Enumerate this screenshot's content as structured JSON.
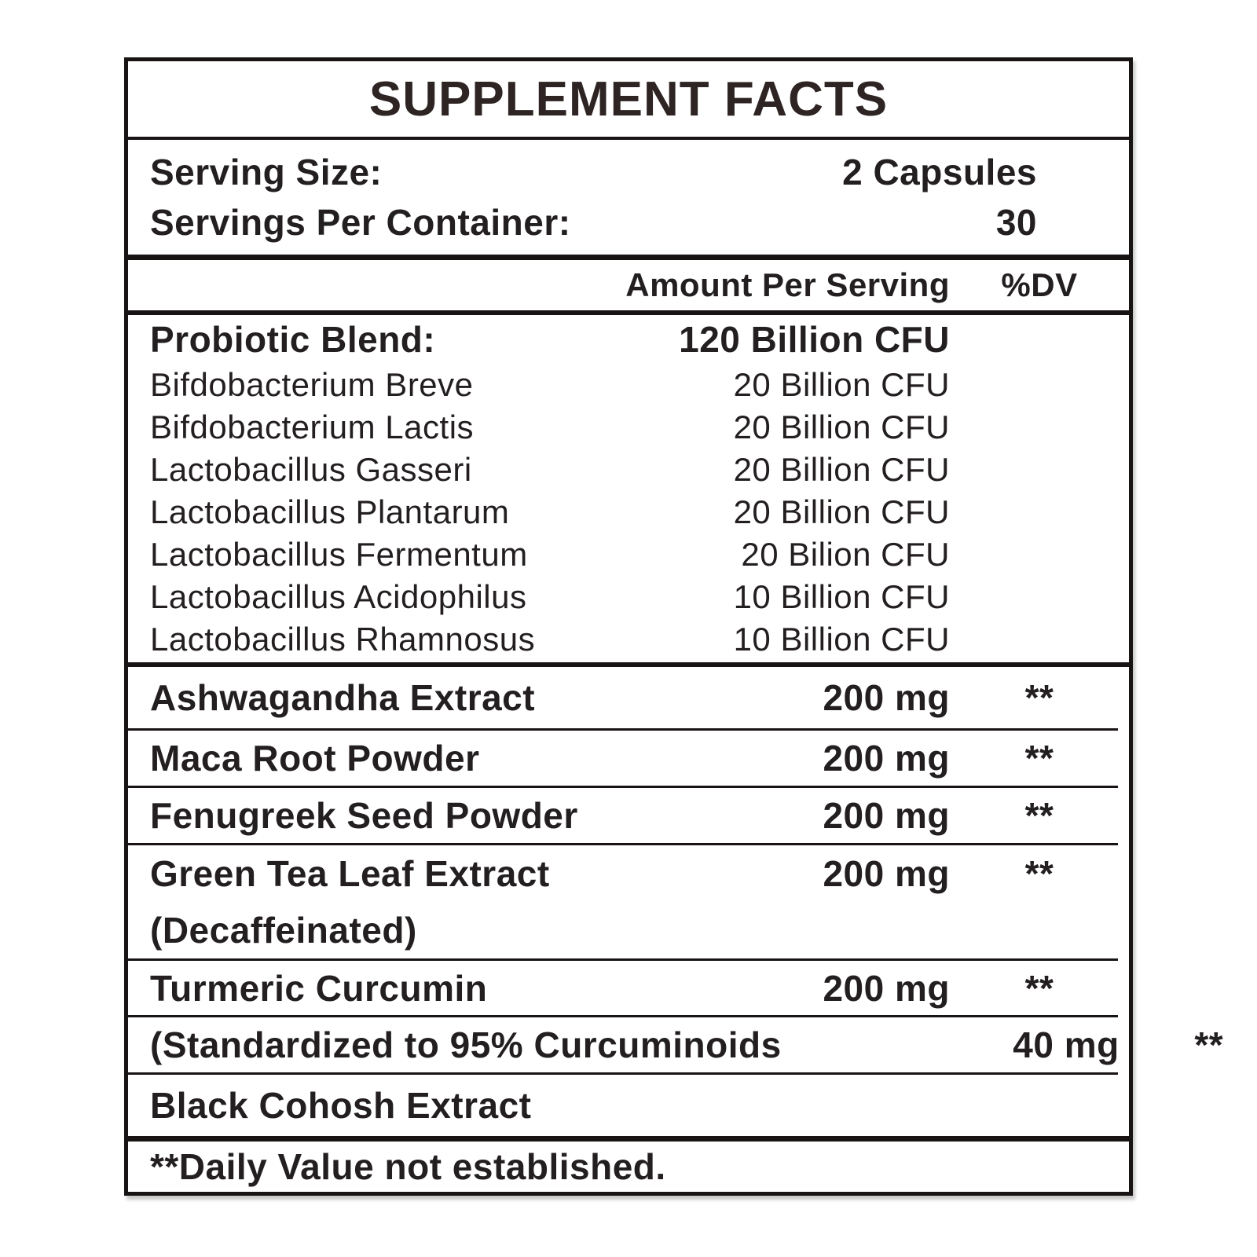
{
  "title": "SUPPLEMENT FACTS",
  "serving": {
    "size_label": "Serving Size:",
    "size_value": "2 Capsules",
    "container_label": "Servings Per Container:",
    "container_value": "30"
  },
  "header": {
    "amount": "Amount Per Serving",
    "dv": "%DV"
  },
  "probiotic": {
    "name": "Probiotic Blend:",
    "amount": "120 Billion CFU",
    "strains": [
      {
        "name": "Bifdobacterium Breve",
        "amount": "20 Billion CFU"
      },
      {
        "name": "Bifdobacterium Lactis",
        "amount": "20 Billion CFU"
      },
      {
        "name": "Lactobacillus Gasseri",
        "amount": "20 Billion CFU"
      },
      {
        "name": "Lactobacillus Plantarum",
        "amount": "20 Billion CFU"
      },
      {
        "name": "Lactobacillus Fermentum",
        "amount": "20 Bilion CFU"
      },
      {
        "name": "Lactobacillus Acidophilus",
        "amount": "10 Billion CFU"
      },
      {
        "name": "Lactobacillus Rhamnosus",
        "amount": "10 Billion CFU"
      }
    ]
  },
  "ingredients": [
    {
      "name": "Ashwagandha Extract",
      "amount": "200 mg",
      "dv": "**"
    },
    {
      "name": "Maca Root Powder",
      "amount": "200 mg",
      "dv": "**"
    },
    {
      "name": "Fenugreek Seed Powder",
      "amount": "200 mg",
      "dv": "**"
    },
    {
      "name": "Green Tea Leaf Extract",
      "name2": "(Decaffeinated)",
      "amount": "200 mg",
      "dv": "**"
    },
    {
      "name": "Turmeric Curcumin",
      "amount": "200 mg",
      "dv": "**"
    },
    {
      "name": "(Standardized to 95% Curcuminoids",
      "amount": "40 mg",
      "dv": "**"
    },
    {
      "name": "Black Cohosh Extract",
      "amount": "",
      "dv": ""
    }
  ],
  "footnote": "**Daily Value not established.",
  "colors": {
    "background": "#ffffff",
    "text": "#231f20",
    "title_text": "#2d2423",
    "border": "#191414"
  }
}
